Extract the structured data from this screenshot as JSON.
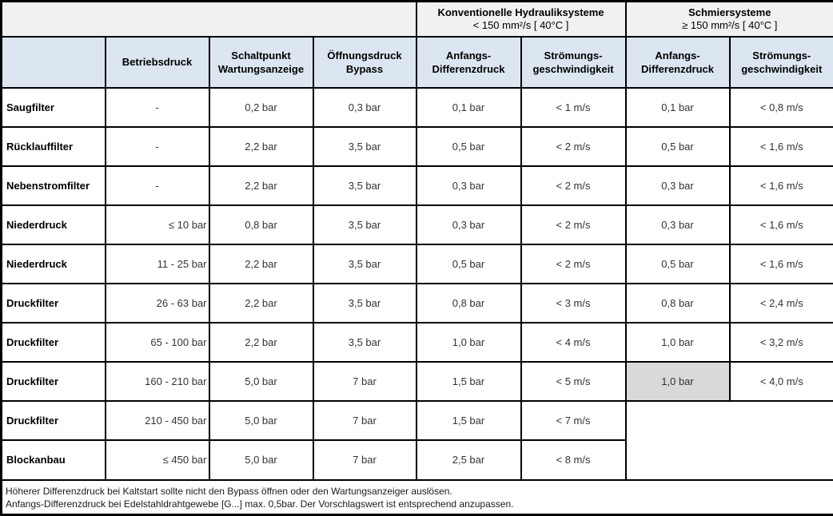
{
  "table": {
    "group_header": {
      "konventionelle": {
        "title": "Konventionelle Hydrauliksysteme",
        "subtitle": "< 150 mm²/s [ 40°C ]"
      },
      "schmiersysteme": {
        "title": "Schmiersysteme",
        "subtitle": "≥ 150 mm²/s [ 40°C ]"
      }
    },
    "column_headers": {
      "betriebsdruck": "Betriebsdruck",
      "schaltpunkt": "Schaltpunkt\nWartungsanzeige",
      "oeffnungsdruck": "Öffnungsdruck\nBypass",
      "anfangs_differenzdruck": "Anfangs-\nDifferenzdruck",
      "stroemungsgeschwindigkeit": "Strömungs-\ngeschwindigkeit"
    },
    "rows": [
      {
        "label": "Saugfilter",
        "betriebsdruck": "-",
        "schaltpunkt": "0,2 bar",
        "bypass": "0,3 bar",
        "konv_dp": "0,1 bar",
        "konv_v": "< 1 m/s",
        "schmier_dp": "0,1 bar",
        "schmier_v": "< 0,8 m/s"
      },
      {
        "label": "Rücklauffilter",
        "betriebsdruck": "-",
        "schaltpunkt": "2,2 bar",
        "bypass": "3,5 bar",
        "konv_dp": "0,5 bar",
        "konv_v": "< 2 m/s",
        "schmier_dp": "0,5 bar",
        "schmier_v": "< 1,6 m/s"
      },
      {
        "label": "Nebenstromfilter",
        "betriebsdruck": "-",
        "schaltpunkt": "2,2 bar",
        "bypass": "3,5 bar",
        "konv_dp": "0,3 bar",
        "konv_v": "< 2 m/s",
        "schmier_dp": "0,3 bar",
        "schmier_v": "< 1,6 m/s"
      },
      {
        "label": "Niederdruck",
        "betriebsdruck": "≤ 10 bar",
        "schaltpunkt": "0,8 bar",
        "bypass": "3,5 bar",
        "konv_dp": "0,3 bar",
        "konv_v": "< 2 m/s",
        "schmier_dp": "0,3 bar",
        "schmier_v": "< 1,6 m/s"
      },
      {
        "label": "Niederdruck",
        "betriebsdruck": "11 - 25 bar",
        "schaltpunkt": "2,2 bar",
        "bypass": "3,5 bar",
        "konv_dp": "0,5 bar",
        "konv_v": "< 2 m/s",
        "schmier_dp": "0,5 bar",
        "schmier_v": "< 1,6 m/s"
      },
      {
        "label": "Druckfilter",
        "betriebsdruck": "26 - 63 bar",
        "schaltpunkt": "2,2 bar",
        "bypass": "3,5 bar",
        "konv_dp": "0,8 bar",
        "konv_v": "< 3 m/s",
        "schmier_dp": "0,8 bar",
        "schmier_v": "< 2,4 m/s"
      },
      {
        "label": "Druckfilter",
        "betriebsdruck": "65 - 100 bar",
        "schaltpunkt": "2,2 bar",
        "bypass": "3,5 bar",
        "konv_dp": "1,0 bar",
        "konv_v": "< 4 m/s",
        "schmier_dp": "1,0 bar",
        "schmier_v": "< 3,2 m/s"
      },
      {
        "label": "Druckfilter",
        "betriebsdruck": "160 - 210 bar",
        "schaltpunkt": "5,0 bar",
        "bypass": "7 bar",
        "konv_dp": "1,5 bar",
        "konv_v": "< 5 m/s",
        "schmier_dp": "1,0 bar",
        "schmier_v": "< 4,0 m/s",
        "schmier_dp_highlighted": true
      },
      {
        "label": "Druckfilter",
        "betriebsdruck": "210 - 450 bar",
        "schaltpunkt": "5,0 bar",
        "bypass": "7 bar",
        "konv_dp": "1,5 bar",
        "konv_v": "< 7 m/s",
        "schmier_merged_start": true
      },
      {
        "label": "Blockanbau",
        "betriebsdruck": "≤ 450 bar",
        "schaltpunkt": "5,0 bar",
        "bypass": "7 bar",
        "konv_dp": "2,5 bar",
        "konv_v": "< 8 m/s"
      }
    ],
    "footnotes": [
      "Höherer Differenzdruck bei Kaltstart sollte nicht den Bypass öffnen oder den Wartungsanzeiger auslösen.",
      "Anfangs-Differenzdruck bei Edelstahldrahtgewebe [G...] max. 0,5bar. Der Vorschlagswert ist entsprechend anzupassen."
    ],
    "colors": {
      "header_blue": "#dce6f1",
      "group_band_gray": "#f1f1f1",
      "highlight_gray": "#d9d9d9",
      "border_black": "#000000"
    }
  }
}
